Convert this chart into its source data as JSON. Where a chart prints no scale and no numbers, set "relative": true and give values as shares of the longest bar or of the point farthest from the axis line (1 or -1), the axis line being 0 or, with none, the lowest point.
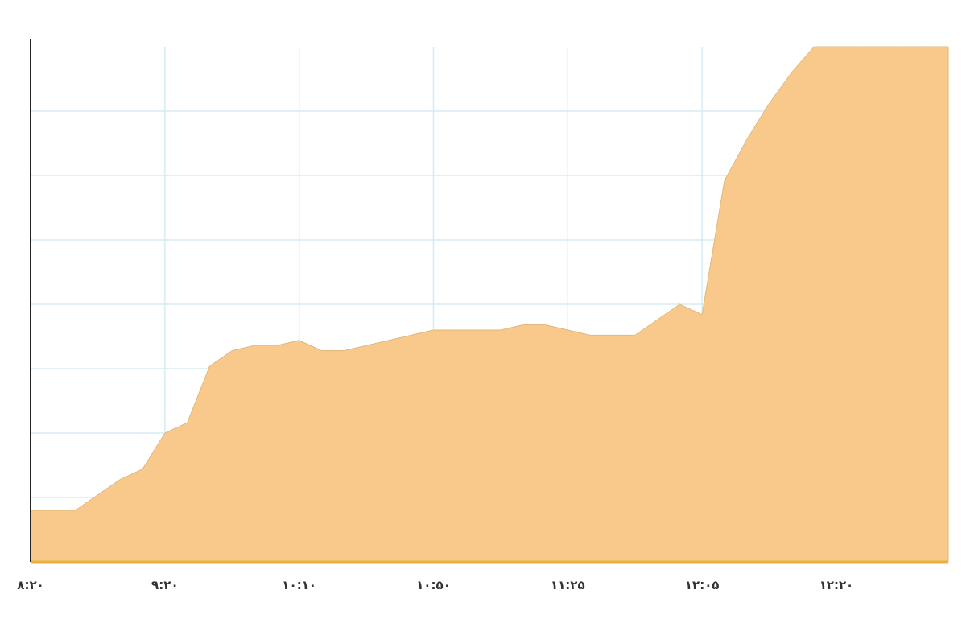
{
  "chart_data": {
    "type": "area",
    "relative": true,
    "grid": true,
    "categories": [
      "۸:۲۰",
      null,
      null,
      null,
      null,
      null,
      "۹:۲۰",
      null,
      null,
      null,
      null,
      null,
      "۱۰:۱۰",
      null,
      null,
      null,
      null,
      null,
      "۱۰:۵۰",
      null,
      null,
      null,
      null,
      null,
      "۱۱:۲۵",
      null,
      null,
      null,
      null,
      null,
      "۱۲:۰۵",
      null,
      null,
      null,
      null,
      null,
      "۱۲:۲۰",
      null,
      null,
      null,
      null,
      null
    ],
    "series": [
      {
        "color": "#f8c98a",
        "values": [
          0.1,
          0.1,
          0.1,
          0.13,
          0.16,
          0.18,
          0.25,
          0.27,
          0.38,
          0.41,
          0.42,
          0.42,
          0.43,
          0.41,
          0.41,
          0.42,
          0.43,
          0.44,
          0.45,
          0.45,
          0.45,
          0.45,
          0.46,
          0.46,
          0.45,
          0.44,
          0.44,
          0.44,
          0.47,
          0.5,
          0.48,
          0.74,
          0.82,
          0.89,
          0.95,
          1,
          1,
          1,
          1,
          1,
          1,
          1
        ]
      }
    ]
  }
}
